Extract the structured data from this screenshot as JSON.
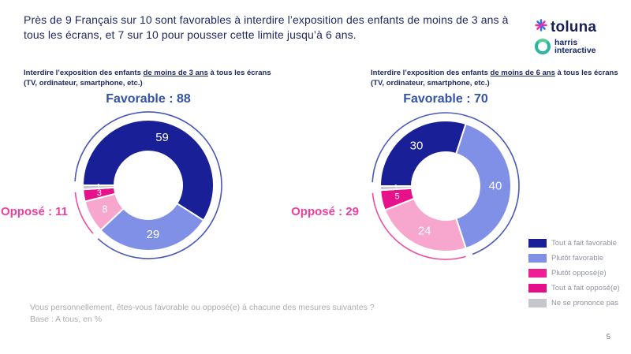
{
  "page": {
    "number": "5"
  },
  "header": {
    "title_line1": "Près de 9 Français sur 10 sont favorables à interdire l’exposition des enfants de moins de 3 ans à",
    "title_line2": "tous les écrans, et 7 sur 10 pour pousser cette limite jusqu’à 6 ans.",
    "logos": {
      "toluna": "toluna",
      "harris_line1": "harris",
      "harris_line2": "interactive"
    }
  },
  "legend": {
    "items": [
      {
        "label": "Tout à fait favorable",
        "color": "#191f97"
      },
      {
        "label": "Plutôt favorable",
        "color": "#8190e7"
      },
      {
        "label": "Plutôt opposé(e)",
        "color": "#f01e95"
      },
      {
        "label": "Tout à fait opposé(e)",
        "color": "#e50d89"
      },
      {
        "label": "Ne se prononce pas",
        "color": "#c5c7cd"
      }
    ]
  },
  "footer": {
    "question": "Vous personnellement, êtes-vous favorable ou opposé(e) à chacune des mesures suivantes ?",
    "base": "Base : A tous, en %"
  },
  "chart_data": [
    {
      "type": "pie",
      "question_before": "Interdire l’exposition des enfants ",
      "question_underlined": "de moins de 3 ans",
      "question_after": " à tous les écrans",
      "question_line2": "(TV, ordinateur, smartphone, etc.)",
      "favorable_label": "Favorable : 88",
      "oppose_label": "Opposé : 11",
      "favorable_total": 88,
      "oppose_total": 11,
      "start_angle_deg": 270,
      "categories": [
        "Tout à fait favorable",
        "Plutôt favorable",
        "Plutôt opposé(e)",
        "Tout à fait opposé(e)",
        "Ne se prononce pas"
      ],
      "values": [
        59,
        29,
        8,
        3,
        1
      ],
      "colors": [
        "#191f97",
        "#8190e7",
        "#f7a6ce",
        "#e8118c",
        "#c5c7cd"
      ],
      "outer_arc_colors": {
        "favorable": "#4a58b8",
        "oppose": "#eb4fa3"
      }
    },
    {
      "type": "pie",
      "question_before": "Interdire l’exposition des enfants ",
      "question_underlined": "de moins de 6 ans",
      "question_after": " à tous les écrans",
      "question_line2": "(TV, ordinateur, smartphone, etc.)",
      "favorable_label": "Favorable : 70",
      "oppose_label": "Opposé : 29",
      "favorable_total": 70,
      "oppose_total": 29,
      "start_angle_deg": 270,
      "categories": [
        "Tout à fait favorable",
        "Plutôt favorable",
        "Plutôt opposé(e)",
        "Tout à fait opposé(e)",
        "Ne se prononce pas"
      ],
      "values": [
        30,
        40,
        24,
        5,
        1
      ],
      "colors": [
        "#191f97",
        "#8190e7",
        "#f7a6ce",
        "#e8118c",
        "#c5c7cd"
      ],
      "outer_arc_colors": {
        "favorable": "#4a58b8",
        "oppose": "#eb4fa3"
      }
    }
  ]
}
